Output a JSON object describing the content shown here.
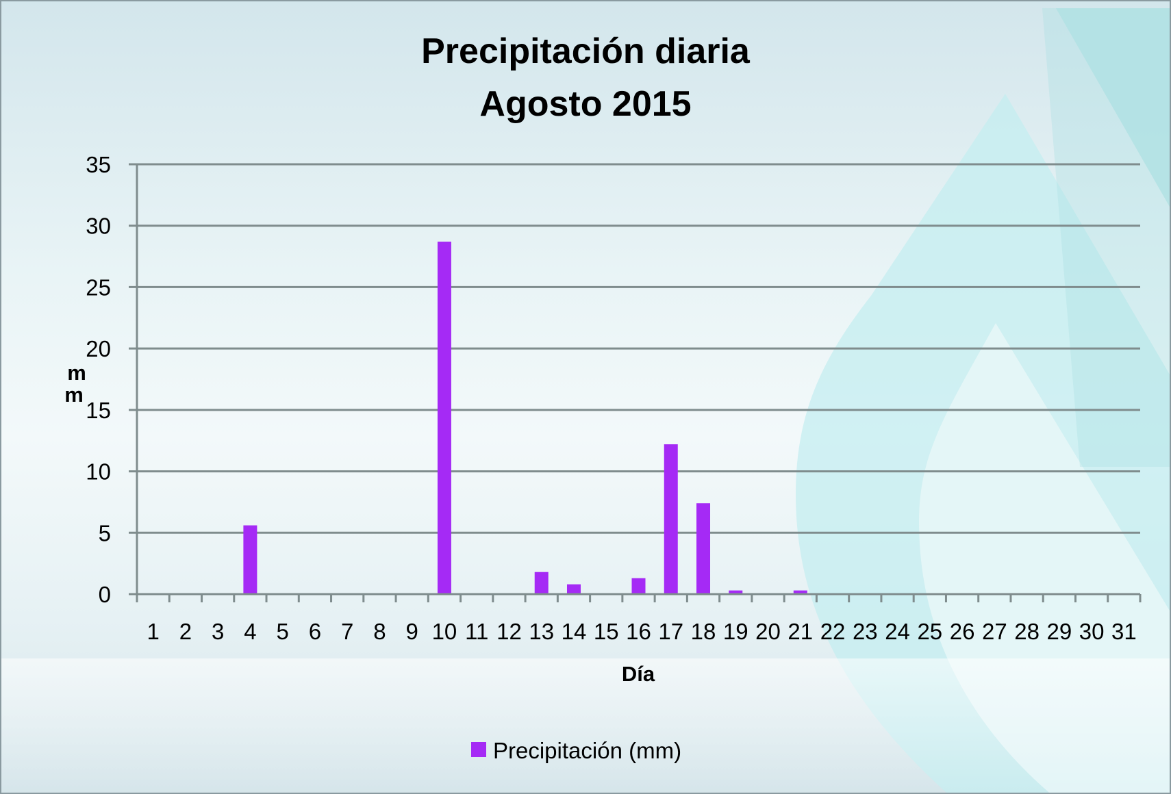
{
  "chart_data": {
    "type": "bar",
    "title": [
      "Precipitación diaria",
      "Agosto 2015"
    ],
    "xlabel": "Día",
    "ylabel_lines": [
      "m",
      "m"
    ],
    "ylim": [
      0,
      35
    ],
    "yticks": [
      "0",
      "5",
      "10",
      "15",
      "20",
      "25",
      "30",
      "35"
    ],
    "grid": true,
    "legend_position": "bottom",
    "categories": [
      "1",
      "2",
      "3",
      "4",
      "5",
      "6",
      "7",
      "8",
      "9",
      "10",
      "11",
      "12",
      "13",
      "14",
      "15",
      "16",
      "17",
      "18",
      "19",
      "20",
      "21",
      "22",
      "23",
      "24",
      "25",
      "26",
      "27",
      "28",
      "29",
      "30",
      "31"
    ],
    "series": [
      {
        "name": "Precipitación (mm)",
        "color": "#a52af5",
        "values": [
          0,
          0,
          0,
          5.6,
          0,
          0,
          0,
          0,
          0,
          28.7,
          0,
          0,
          1.8,
          0.8,
          0,
          1.3,
          12.2,
          7.4,
          0.3,
          0,
          0.3,
          0,
          0,
          0,
          0,
          0,
          0,
          0,
          0,
          0,
          0
        ]
      }
    ]
  }
}
